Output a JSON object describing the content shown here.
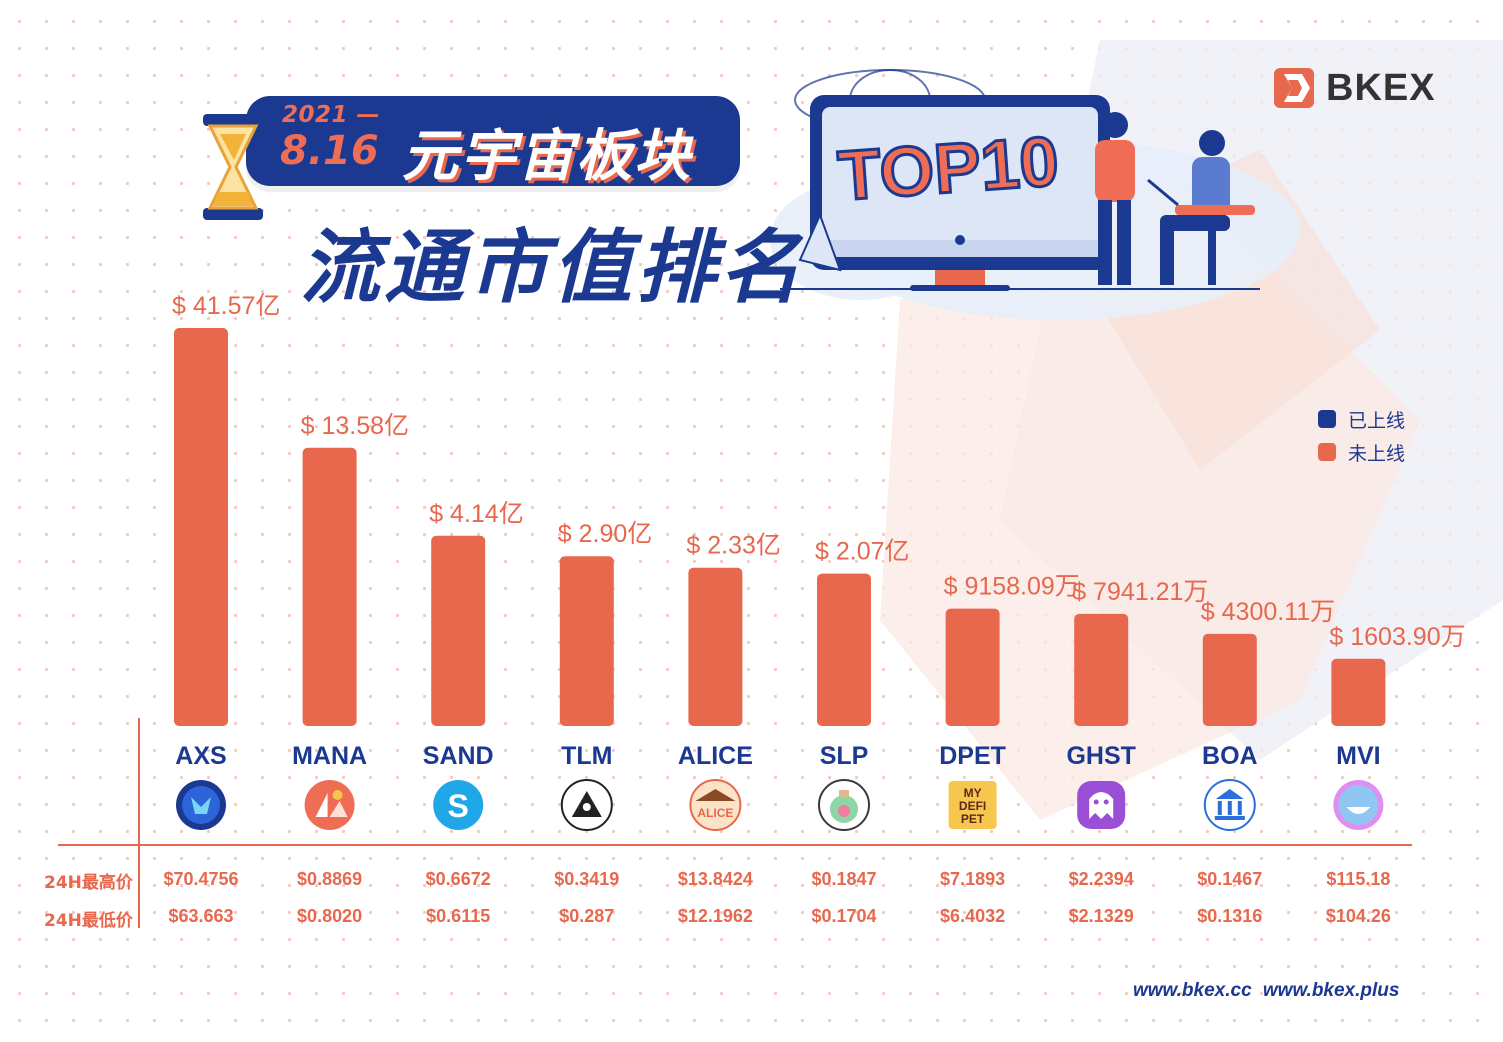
{
  "header": {
    "year": "2021 —",
    "day": "8.16",
    "sector": "元宇宙板块",
    "title": "流通市值排名",
    "badge": "TOP10"
  },
  "brand": {
    "name": "BKEX"
  },
  "legend": [
    {
      "label": "已上线",
      "color": "#1c3991"
    },
    {
      "label": "未上线",
      "color": "#e8684e"
    }
  ],
  "table": {
    "high_label": "24H最高价",
    "low_label": "24H最低价"
  },
  "footer": {
    "urls": "www.bkex.cc  www.bkex.plus"
  },
  "colors": {
    "bar": "#e8684e",
    "navy": "#1c3991",
    "accent": "#ef6d55"
  },
  "chart_data": {
    "type": "bar",
    "categories": [
      "AXS",
      "MANA",
      "SAND",
      "TLM",
      "ALICE",
      "SLP",
      "DPET",
      "GHST",
      "BOA",
      "MVI"
    ],
    "values_usd": [
      4157000000,
      1358000000,
      414000000,
      290000000,
      233000000,
      207000000,
      91580900,
      79412100,
      43001100,
      16039000
    ],
    "value_labels": [
      "$ 41.57亿",
      "$ 13.58亿",
      "$ 4.14亿",
      "$ 2.90亿",
      "$ 2.33亿",
      "$ 2.07亿",
      "$ 9158.09万",
      "$ 7941.21万",
      "$ 4300.11万",
      "$ 1603.90万"
    ],
    "listed_status": [
      "未上线",
      "未上线",
      "未上线",
      "未上线",
      "未上线",
      "未上线",
      "未上线",
      "未上线",
      "未上线",
      "未上线"
    ],
    "high_24h": [
      "$70.4756",
      "$0.8869",
      "$0.6672",
      "$0.3419",
      "$13.8424",
      "$0.1847",
      "$7.1893",
      "$2.2394",
      "$0.1467",
      "$115.18"
    ],
    "low_24h": [
      "$63.663",
      "$0.8020",
      "$0.6115",
      "$0.287",
      "$12.1962",
      "$0.1704",
      "$6.4032",
      "$2.1329",
      "$0.1316",
      "$104.26"
    ],
    "icons": [
      "axs-icon",
      "mana-icon",
      "sand-icon",
      "tlm-icon",
      "alice-icon",
      "slp-icon",
      "dpet-icon",
      "ghst-icon",
      "boa-icon",
      "mvi-icon"
    ],
    "icon_texts": {
      "dpet": "MY DEFI PET",
      "alice": "ALICE"
    },
    "scale": "non-linear (display)",
    "legend_position": "right"
  }
}
